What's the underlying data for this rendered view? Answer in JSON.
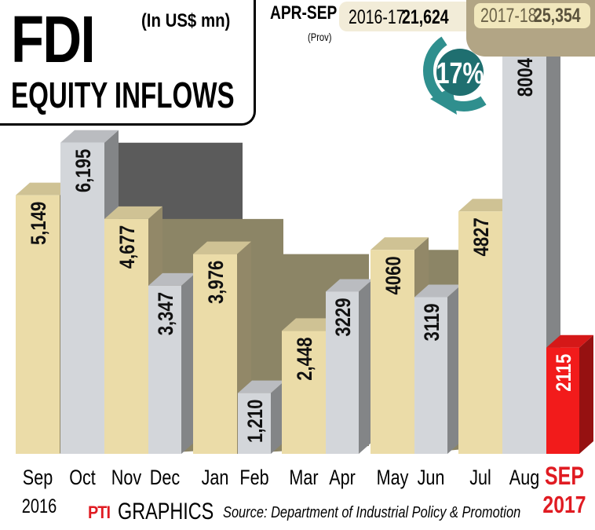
{
  "title": "FDI",
  "subtitle": "EQUITY INFLOWS",
  "unit": "(In US$ mn)",
  "summary": {
    "label": "APR-SEP",
    "note": "(Prov)",
    "prev_year": "2016-17",
    "prev_value": "21,624",
    "curr_year": "2017-18",
    "curr_value": "25,354",
    "growth": "17",
    "growth_unit": "%"
  },
  "footer": {
    "agency": "PTI",
    "graphics": "GRAPHICS",
    "source": "Source: Department of Industrial Policy & Promotion"
  },
  "colors": {
    "tan_bar": "#ebdca8",
    "grey_bar": "#d3d6da",
    "highlight_bar": "#f21b1b",
    "shadow_olive": "#8c8566",
    "shadow_grey": "#5b5b5b",
    "highlight_text": "#e01b22",
    "arrow_teal": "#2f8f8e"
  },
  "chart_data": {
    "type": "bar",
    "title": "FDI EQUITY INFLOWS",
    "ylabel": "",
    "xlabel": "",
    "unit": "(In US$ mn)",
    "ylim": [
      0,
      8500
    ],
    "categories": [
      "Sep",
      "Oct",
      "Nov",
      "Dec",
      "Jan",
      "Feb",
      "Mar",
      "Apr",
      "May",
      "Jun",
      "Jul",
      "Aug",
      "SEP"
    ],
    "category_years": [
      "2016",
      "",
      "",
      "",
      "",
      "",
      "",
      "",
      "",
      "",
      "",
      "",
      "2017"
    ],
    "values": [
      5149,
      6195,
      4677,
      3347,
      3976,
      1210,
      2448,
      3229,
      4060,
      3119,
      4827,
      8004,
      2115
    ],
    "value_labels": [
      "5,149",
      "6,195",
      "4,677",
      "3,347",
      "3,976",
      "1,210",
      "2,448",
      "3229",
      "4060",
      "3119",
      "4827",
      "8004",
      "2115"
    ],
    "bar_colors": [
      "tan",
      "grey",
      "tan",
      "grey",
      "tan",
      "grey",
      "tan",
      "grey",
      "tan",
      "grey",
      "tan",
      "grey",
      "red"
    ],
    "highlight_index": 12,
    "grid": false,
    "legend": "none"
  }
}
